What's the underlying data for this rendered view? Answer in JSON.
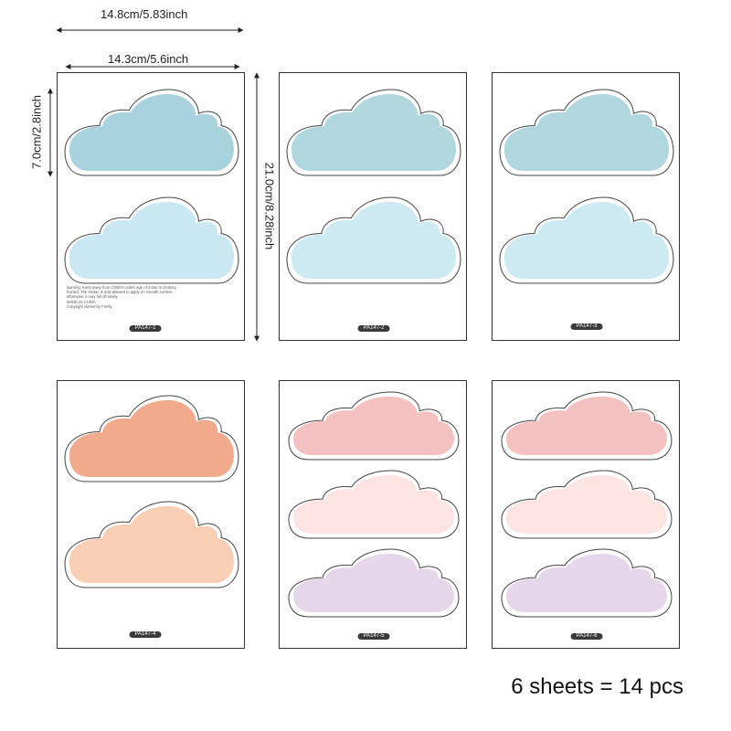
{
  "dimensions": {
    "outer_width": "14.8cm/5.83inch",
    "inner_width": "14.3cm/5.6inch",
    "cloud_height": "7.0cm/2.8inch",
    "sheet_height": "21.0cm/8.28inch"
  },
  "warning_lines": [
    "warning: Keep away from children under age of 3 due to choking",
    "hazard. The sticker is only allowed to apply on smooth surface,",
    "otherwise, it may fall off easily.",
    "MADE IN CHINA",
    "Copyright owned by Firefly"
  ],
  "sheets": [
    {
      "label": "PA147-1",
      "clouds": [
        {
          "color": "#a9d3dc"
        },
        {
          "color": "#c9e8f2"
        }
      ]
    },
    {
      "label": "PA147-2",
      "clouds": [
        {
          "color": "#b0d6de"
        },
        {
          "color": "#cde9f1"
        }
      ]
    },
    {
      "label": "PA147-3",
      "clouds": [
        {
          "color": "#b0d6de"
        },
        {
          "color": "#cde9f1"
        }
      ]
    },
    {
      "label": "PA147-4",
      "clouds": [
        {
          "color": "#f2aa8d"
        },
        {
          "color": "#f8ceb4"
        }
      ]
    },
    {
      "label": "PA147-5",
      "clouds": [
        {
          "color": "#f3c2c0"
        },
        {
          "color": "#fbe4e2"
        },
        {
          "color": "#e6d6ea"
        }
      ]
    },
    {
      "label": "PA147-6",
      "clouds": [
        {
          "color": "#f3c2c0"
        },
        {
          "color": "#fbe4e2"
        },
        {
          "color": "#e6d6ea"
        }
      ]
    }
  ],
  "summary": "6 sheets = 14 pcs"
}
